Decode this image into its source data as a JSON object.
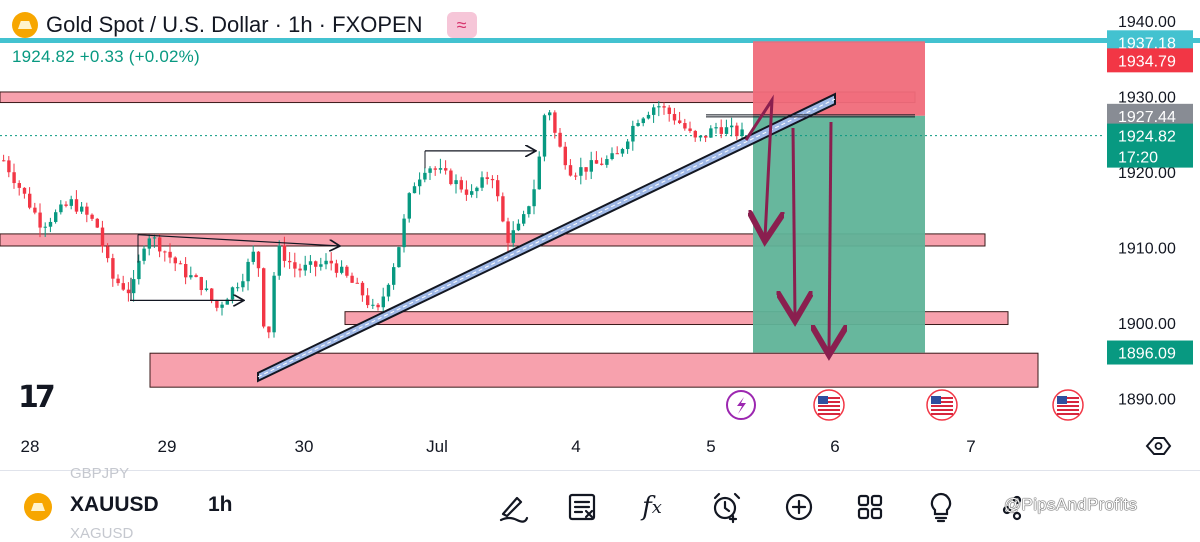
{
  "header": {
    "title": "Gold Spot / U.S. Dollar · 1h · FXOPEN",
    "indicator_icon": "wave-indicator-icon",
    "symbol_icon": "gold-coin-icon"
  },
  "quote": {
    "last": "1924.82",
    "change": "+0.33",
    "change_pct": "(+0.02%)"
  },
  "colors": {
    "up": "#089981",
    "down": "#f23645",
    "zone_fill": "#f7a1ad",
    "stop_zone": "#f06b7a",
    "target_zone": "#5fb398",
    "trendline_fill": "#9fb8e6",
    "arrow": "#8a1f4f",
    "accent_cyan": "#43c2d0"
  },
  "price_axis": {
    "ticks": [
      "1940.00",
      "1930.00",
      "1920.00",
      "1910.00",
      "1900.00",
      "1890.00"
    ],
    "tick_values": [
      1940,
      1930,
      1920,
      1910,
      1900,
      1890
    ],
    "badges": [
      {
        "label": "1937.18",
        "value": 1937.18,
        "color": "#43c2d0"
      },
      {
        "label": "1934.79",
        "value": 1934.79,
        "color": "#f23645"
      },
      {
        "label": "1927.44",
        "value": 1927.44,
        "color": "#888c94"
      },
      {
        "label": "1924.82",
        "sub": "17:20",
        "value": 1924.82,
        "color": "#089981"
      },
      {
        "label": "1896.09",
        "value": 1896.09,
        "color": "#089981"
      }
    ]
  },
  "time_axis": {
    "labels": [
      "28",
      "29",
      "30",
      "Jul",
      "4",
      "5",
      "6",
      "7"
    ]
  },
  "chart_data": {
    "type": "candlestick",
    "symbol": "XAUUSD",
    "interval": "1h",
    "ylim": [
      1887,
      1941
    ],
    "current_price": 1924.82,
    "horizontal_zones": [
      {
        "name": "resistance",
        "low": 1929.2,
        "high": 1930.6
      },
      {
        "name": "support-1",
        "low": 1910.2,
        "high": 1911.8
      },
      {
        "name": "support-2",
        "low": 1899.8,
        "high": 1901.5
      },
      {
        "name": "support-3",
        "low": 1891.5,
        "high": 1896.0
      }
    ],
    "trade": {
      "entry": 1927.44,
      "stop_top": 1937.18,
      "stop": 1934.79,
      "target": 1896.09
    },
    "trendline": {
      "start_price": 1893,
      "end_price": 1929
    }
  },
  "bottom_bar": {
    "symbol": "XAUUSD",
    "interval": "1h",
    "ghost_above": "GBPJPY",
    "ghost_below": "XAGUSD",
    "tools": [
      "draw-brush-icon",
      "watchlist-details-icon",
      "indicators-fx-icon",
      "alert-clock-icon",
      "add-plus-icon",
      "apps-grid-icon",
      "ideas-lightbulb-icon",
      "more-options-icon"
    ],
    "fx_label": "f",
    "fx_sub": "x",
    "watermark": "@PipsAndProfits"
  },
  "events": [
    {
      "kind": "flash-icon"
    },
    {
      "kind": "us-flag-icon"
    },
    {
      "kind": "us-flag-icon"
    },
    {
      "kind": "us-flag-icon"
    }
  ]
}
